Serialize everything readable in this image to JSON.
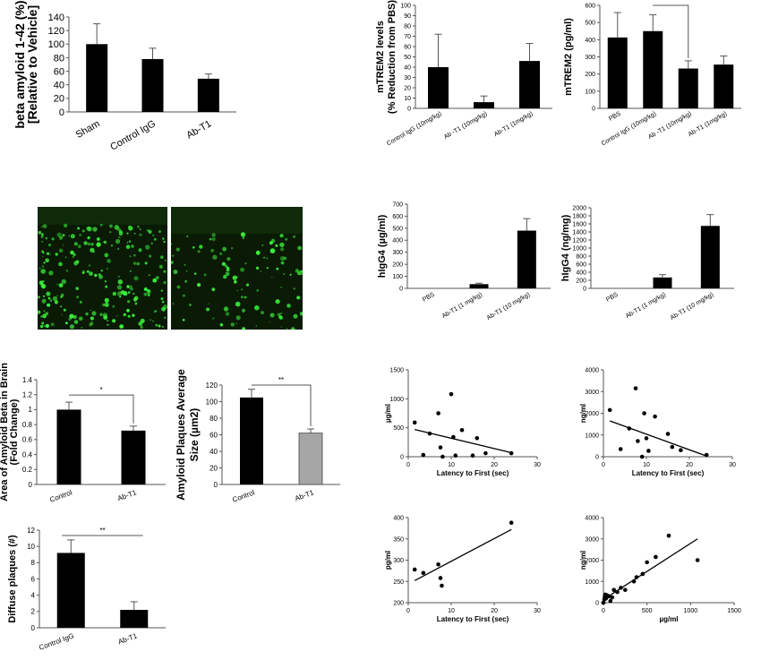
{
  "colors": {
    "bar": "#000000",
    "bar_alt": "#a6a6a6",
    "axis": "#555555",
    "plaque_bg": "#0a1a05",
    "plaque_spot": "#3cf03c"
  },
  "chart_data": [
    {
      "id": "abeta-relative",
      "type": "bar",
      "ylabel": [
        "beta amyloid 1-42 (%)",
        "[Relative to Vehicle]"
      ],
      "categories": [
        "Sham",
        "Control IgG",
        "Ab-T1"
      ],
      "values": [
        100,
        78,
        49
      ],
      "errors": [
        30,
        16,
        7
      ],
      "ylim": [
        0,
        140
      ],
      "yticks": [
        0,
        20,
        40,
        60,
        80,
        100,
        120,
        140
      ]
    },
    {
      "id": "mtrem2-reduction",
      "type": "bar",
      "ylabel": [
        "mTREM2 levels",
        "(% Reduction from PBS)"
      ],
      "categories": [
        "Control IgG (10mg/kg)",
        "Ab -T1 (10mg/kg)",
        "Ab-T1 (1mg/kg)"
      ],
      "values": [
        40,
        6,
        46
      ],
      "errors": [
        32,
        6,
        17
      ],
      "ylim": [
        0,
        100
      ],
      "yticks": [
        0,
        10,
        20,
        30,
        40,
        50,
        60,
        70,
        80,
        90,
        100
      ]
    },
    {
      "id": "mtrem2-pgml",
      "type": "bar",
      "ylabel": [
        "mTREM2 (pg/ml)"
      ],
      "categories": [
        "PBS",
        "Control IgG (10mg/kg)",
        "Ab -T1 (10mg/kg)",
        "Ab-T1 (1mg/kg)"
      ],
      "values": [
        413,
        450,
        232,
        255
      ],
      "errors": [
        145,
        95,
        45,
        50
      ],
      "ylim": [
        0,
        600
      ],
      "yticks": [
        0,
        100,
        200,
        300,
        400,
        500,
        600
      ],
      "significance": {
        "from": 1,
        "to": 2,
        "label": "*"
      }
    },
    {
      "id": "higg4-ugml",
      "type": "bar",
      "ylabel": [
        "hIgG4 (µg/ml)"
      ],
      "categories": [
        "PBS",
        "Ab-T1 (1 mg/kg)",
        "Ab-T1 (10 mg/kg)"
      ],
      "values": [
        0,
        35,
        480
      ],
      "errors": [
        0,
        8,
        100
      ],
      "ylim": [
        0,
        700
      ],
      "yticks": [
        0,
        100,
        200,
        300,
        400,
        500,
        600,
        700
      ]
    },
    {
      "id": "higg4-ngmg",
      "type": "bar",
      "ylabel": [
        "hIgG4 (ng/mg)"
      ],
      "categories": [
        "PBS",
        "Ab-T1 (1 mg/kg)",
        "Ab-T1 (10 mg/kg)"
      ],
      "values": [
        0,
        270,
        1550
      ],
      "errors": [
        0,
        70,
        280
      ],
      "ylim": [
        0,
        2000
      ],
      "yticks": [
        0,
        200,
        400,
        600,
        800,
        1000,
        1200,
        1400,
        1600,
        1800,
        2000
      ]
    },
    {
      "id": "amyloid-area",
      "type": "bar",
      "ylabel": [
        "Area of Amyloid Beta in Brain",
        "(Fold Change)"
      ],
      "categories": [
        "Control",
        "Ab-T1"
      ],
      "values": [
        1.0,
        0.72
      ],
      "errors": [
        0.1,
        0.06
      ],
      "ylim": [
        0,
        1.4
      ],
      "yticks": [
        "0",
        "0.2",
        "0.4",
        "0.6",
        "0.8",
        "1",
        "1.2",
        "1.4"
      ],
      "significance": {
        "from": 0,
        "to": 1,
        "label": "*"
      }
    },
    {
      "id": "plaque-size",
      "type": "bar",
      "ylabel": [
        "Amyloid Plaques Average",
        "Size (µm2)"
      ],
      "categories": [
        "Control",
        "Ab-T1"
      ],
      "values": [
        105,
        62
      ],
      "errors": [
        10,
        5
      ],
      "ylim": [
        0,
        120
      ],
      "yticks": [
        0,
        20,
        40,
        60,
        80,
        100,
        120
      ],
      "significance": {
        "from": 0,
        "to": 1,
        "label": "**"
      }
    },
    {
      "id": "diffuse-plaques",
      "type": "bar",
      "ylabel": [
        "Diffuse plaques (#)"
      ],
      "categories": [
        "Control IgG",
        "Ab-T1"
      ],
      "values": [
        9.2,
        2.2
      ],
      "errors": [
        1.6,
        1.0
      ],
      "ylim": [
        0,
        12
      ],
      "yticks": [
        0,
        2,
        4,
        6,
        8,
        10,
        12
      ],
      "significance": {
        "from": 0,
        "to": 1,
        "label": "**"
      }
    },
    {
      "id": "scatter-ugml-latency",
      "type": "scatter",
      "xlabel": "Latency to First (sec)",
      "ylabel": "µg/ml",
      "xlim": [
        0,
        30
      ],
      "ylim": [
        0,
        1500
      ],
      "xticks": [
        0,
        10,
        20,
        30
      ],
      "yticks": [
        0,
        500,
        1000,
        1500
      ],
      "points": [
        [
          1.5,
          590
        ],
        [
          3.5,
          30
        ],
        [
          5,
          400
        ],
        [
          7,
          750
        ],
        [
          7.5,
          160
        ],
        [
          8,
          0
        ],
        [
          10,
          1080
        ],
        [
          10.5,
          340
        ],
        [
          11,
          20
        ],
        [
          12.5,
          460
        ],
        [
          15,
          20
        ],
        [
          16,
          320
        ],
        [
          18,
          60
        ],
        [
          24,
          60
        ]
      ],
      "fit": [
        [
          1.5,
          470
        ],
        [
          24,
          70
        ]
      ]
    },
    {
      "id": "scatter-ngml-latency",
      "type": "scatter",
      "xlabel": "Latency to First (sec)",
      "ylabel": "ng/ml",
      "xlim": [
        0,
        30
      ],
      "ylim": [
        0,
        4000
      ],
      "xticks": [
        0,
        10,
        20,
        30
      ],
      "yticks": [
        0,
        1000,
        2000,
        3000,
        4000
      ],
      "points": [
        [
          1.5,
          2150
        ],
        [
          4,
          350
        ],
        [
          6,
          1300
        ],
        [
          7.5,
          3150
        ],
        [
          8,
          720
        ],
        [
          9,
          0
        ],
        [
          9.5,
          2000
        ],
        [
          10,
          850
        ],
        [
          10.5,
          270
        ],
        [
          12,
          1850
        ],
        [
          15,
          1050
        ],
        [
          16,
          450
        ],
        [
          18,
          300
        ],
        [
          24,
          80
        ]
      ],
      "fit": [
        [
          1.5,
          1650
        ],
        [
          24,
          30
        ]
      ]
    },
    {
      "id": "scatter-pgml-latency",
      "type": "scatter",
      "xlabel": "Latency to First (sec)",
      "ylabel": "pg/ml",
      "xlim": [
        0,
        30
      ],
      "ylim": [
        200,
        400
      ],
      "xticks": [
        0,
        10,
        20,
        30
      ],
      "yticks": [
        200,
        250,
        300,
        350,
        400
      ],
      "points": [
        [
          1.5,
          278
        ],
        [
          3.5,
          270
        ],
        [
          7,
          290
        ],
        [
          7.5,
          258
        ],
        [
          7.8,
          240
        ],
        [
          24,
          388
        ]
      ],
      "fit": [
        [
          1.5,
          252
        ],
        [
          24,
          372
        ]
      ]
    },
    {
      "id": "scatter-ngml-ugml",
      "type": "scatter",
      "xlabel": "µg/ml",
      "ylabel": "ng/ml",
      "xlim": [
        0,
        1500
      ],
      "ylim": [
        0,
        4000
      ],
      "xticks": [
        0,
        500,
        1000,
        1500
      ],
      "yticks": [
        0,
        1000,
        2000,
        3000,
        4000
      ],
      "points": [
        [
          0,
          0
        ],
        [
          10,
          150
        ],
        [
          15,
          280
        ],
        [
          20,
          380
        ],
        [
          30,
          200
        ],
        [
          40,
          350
        ],
        [
          60,
          300
        ],
        [
          80,
          80
        ],
        [
          100,
          250
        ],
        [
          120,
          600
        ],
        [
          160,
          500
        ],
        [
          200,
          700
        ],
        [
          250,
          600
        ],
        [
          350,
          1000
        ],
        [
          380,
          1200
        ],
        [
          450,
          1350
        ],
        [
          500,
          1900
        ],
        [
          600,
          2150
        ],
        [
          750,
          3150
        ],
        [
          1080,
          2000
        ]
      ],
      "fit": [
        [
          0,
          150
        ],
        [
          1080,
          3000
        ]
      ]
    }
  ]
}
